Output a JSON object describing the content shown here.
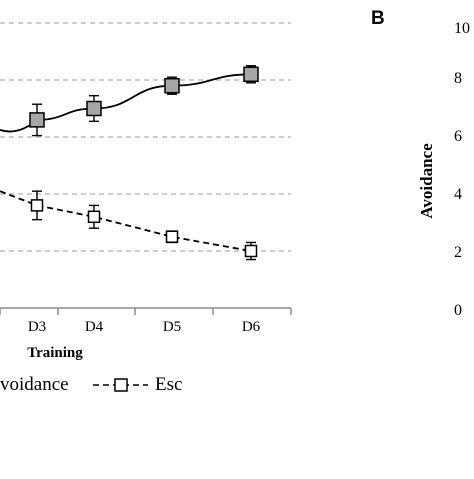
{
  "chart_data": {
    "type": "line",
    "xlabel": "Training",
    "categories": [
      "D3",
      "D4",
      "D5",
      "D6"
    ],
    "y_gridlines": [
      2,
      4,
      6,
      8,
      10
    ],
    "series": [
      {
        "name": "Avoidance",
        "legend_text": "voidance",
        "marker": "square-filled",
        "line": "solid",
        "color": "#000000",
        "fill": "#a6a6a6",
        "values": [
          6.6,
          7.0,
          7.8,
          8.2
        ],
        "errors": [
          0.55,
          0.45,
          0.3,
          0.3
        ]
      },
      {
        "name": "Esc",
        "legend_text": "Esc",
        "marker": "square-open",
        "line": "dashed",
        "color": "#000000",
        "fill": "#ffffff",
        "values": [
          3.6,
          3.2,
          2.5,
          2.0
        ],
        "errors": [
          0.5,
          0.4,
          0.2,
          0.3
        ]
      }
    ],
    "incoming_line": {
      "series": "Esc",
      "from_value": 4.1
    },
    "panel_b": {
      "label": "B",
      "ylabel": "Avoidance",
      "tick_labels": [
        "10",
        "8",
        "6",
        "4",
        "2",
        "0"
      ]
    },
    "grid": true,
    "legend_placement": "bottom"
  }
}
